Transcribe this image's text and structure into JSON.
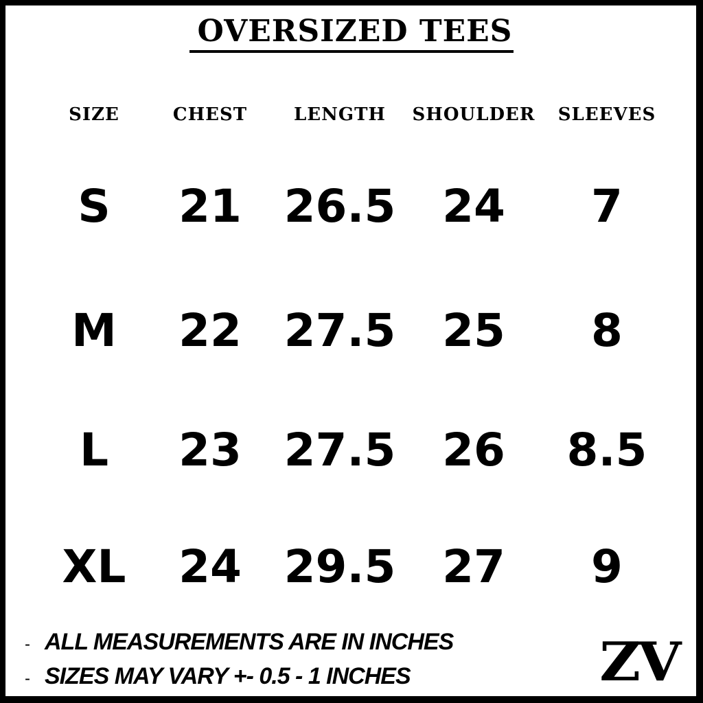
{
  "title": "OVERSIZED TEES",
  "columns": [
    "SIZE",
    "CHEST",
    "LENGTH",
    "SHOULDER",
    "SLEEVES"
  ],
  "rows": [
    [
      "S",
      "21",
      "26.5",
      "24",
      "7"
    ],
    [
      "M",
      "22",
      "27.5",
      "25",
      "8"
    ],
    [
      "L",
      "23",
      "27.5",
      "26",
      "8.5"
    ],
    [
      "XL",
      "24",
      "29.5",
      "27",
      "9"
    ]
  ],
  "notes": [
    {
      "bullet": "-",
      "text": "ALL MEASUREMENTS ARE IN INCHES"
    },
    {
      "bullet": "-",
      "text": "SIZES MAY VARY +- 0.5 - 1 INCHES"
    }
  ],
  "logo": "ZV"
}
